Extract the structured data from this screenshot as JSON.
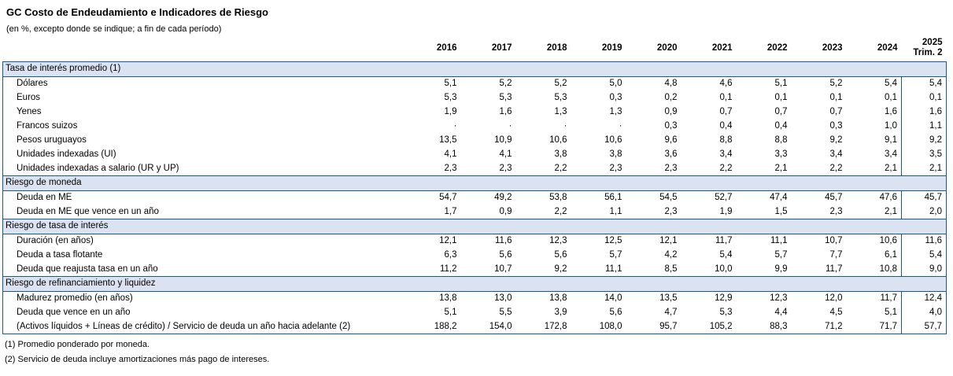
{
  "title": "GC Costo de Endeudamiento e Indicadores de Riesgo",
  "subtitle": "(en %, excepto donde se indique; a fin de cada período)",
  "years": [
    "2016",
    "2017",
    "2018",
    "2019",
    "2020",
    "2021",
    "2022",
    "2023",
    "2024"
  ],
  "last_column": {
    "year": "2025",
    "period": "Trim. 2"
  },
  "colors": {
    "band_bg": "#dbe2f1",
    "border": "#155a96"
  },
  "sections": [
    {
      "header": "Tasa de interés promedio (1)",
      "rows": [
        {
          "label": "Dólares",
          "values": [
            "5,1",
            "5,2",
            "5,2",
            "5,0",
            "4,8",
            "4,6",
            "5,1",
            "5,2",
            "5,4",
            "5,4"
          ]
        },
        {
          "label": "Euros",
          "values": [
            "5,3",
            "5,3",
            "5,3",
            "0,3",
            "0,2",
            "0,1",
            "0,1",
            "0,1",
            "0,1",
            "0,1"
          ]
        },
        {
          "label": "Yenes",
          "values": [
            "1,9",
            "1,6",
            "1,3",
            "1,3",
            "0,9",
            "0,7",
            "0,7",
            "0,7",
            "1,6",
            "1,6"
          ]
        },
        {
          "label": "Francos suizos",
          "values": [
            "·",
            "·",
            "·",
            "·",
            "0,3",
            "0,4",
            "0,4",
            "0,3",
            "1,0",
            "1,1"
          ]
        },
        {
          "label": "Pesos uruguayos",
          "values": [
            "13,5",
            "10,9",
            "10,6",
            "10,6",
            "9,6",
            "8,8",
            "8,8",
            "9,2",
            "9,1",
            "9,2"
          ]
        },
        {
          "label": "Unidades indexadas (UI)",
          "values": [
            "4,1",
            "4,1",
            "3,8",
            "3,8",
            "3,6",
            "3,4",
            "3,3",
            "3,4",
            "3,4",
            "3,5"
          ]
        },
        {
          "label": "Unidades indexadas a salario (UR y UP)",
          "values": [
            "2,3",
            "2,3",
            "2,2",
            "2,3",
            "2,3",
            "2,2",
            "2,1",
            "2,2",
            "2,1",
            "2,1"
          ]
        }
      ]
    },
    {
      "header": "Riesgo de moneda",
      "rows": [
        {
          "label": "Deuda en ME",
          "values": [
            "54,7",
            "49,2",
            "53,8",
            "56,1",
            "54,5",
            "52,7",
            "47,4",
            "45,7",
            "47,6",
            "45,7"
          ]
        },
        {
          "label": "Deuda en ME que vence en un año",
          "values": [
            "1,7",
            "0,9",
            "2,2",
            "1,1",
            "2,3",
            "1,9",
            "1,5",
            "2,3",
            "2,1",
            "2,0"
          ]
        }
      ]
    },
    {
      "header": "Riesgo de tasa de interés",
      "rows": [
        {
          "label": "Duración (en años)",
          "values": [
            "12,1",
            "11,6",
            "12,3",
            "12,5",
            "12,1",
            "11,7",
            "11,1",
            "10,7",
            "10,6",
            "11,6"
          ]
        },
        {
          "label": "Deuda a tasa flotante",
          "values": [
            "6,3",
            "5,6",
            "5,6",
            "5,7",
            "4,2",
            "5,4",
            "5,7",
            "7,7",
            "6,1",
            "5,4"
          ]
        },
        {
          "label": "Deuda que reajusta tasa en un año",
          "values": [
            "11,2",
            "10,7",
            "9,2",
            "11,1",
            "8,5",
            "10,0",
            "9,9",
            "11,7",
            "10,8",
            "9,0"
          ]
        }
      ]
    },
    {
      "header": "Riesgo de refinanciamiento y liquidez",
      "rows": [
        {
          "label": "Madurez promedio (en años)",
          "values": [
            "13,8",
            "13,0",
            "13,8",
            "14,0",
            "13,5",
            "12,9",
            "12,3",
            "12,0",
            "11,7",
            "12,4"
          ]
        },
        {
          "label": "Deuda que vence en un año",
          "values": [
            "5,1",
            "5,5",
            "3,9",
            "5,6",
            "4,7",
            "5,3",
            "4,4",
            "4,5",
            "5,1",
            "4,0"
          ]
        },
        {
          "label": "(Activos líquidos + Líneas de crédito) / Servicio de deuda un año hacia adelante (2)",
          "values": [
            "188,2",
            "154,0",
            "172,8",
            "108,0",
            "95,7",
            "105,2",
            "88,3",
            "71,2",
            "71,7",
            "57,7"
          ]
        }
      ]
    }
  ],
  "footnotes": [
    "(1) Promedio ponderado por moneda.",
    "(2) Servicio de deuda incluye amortizaciones más pago de intereses."
  ]
}
